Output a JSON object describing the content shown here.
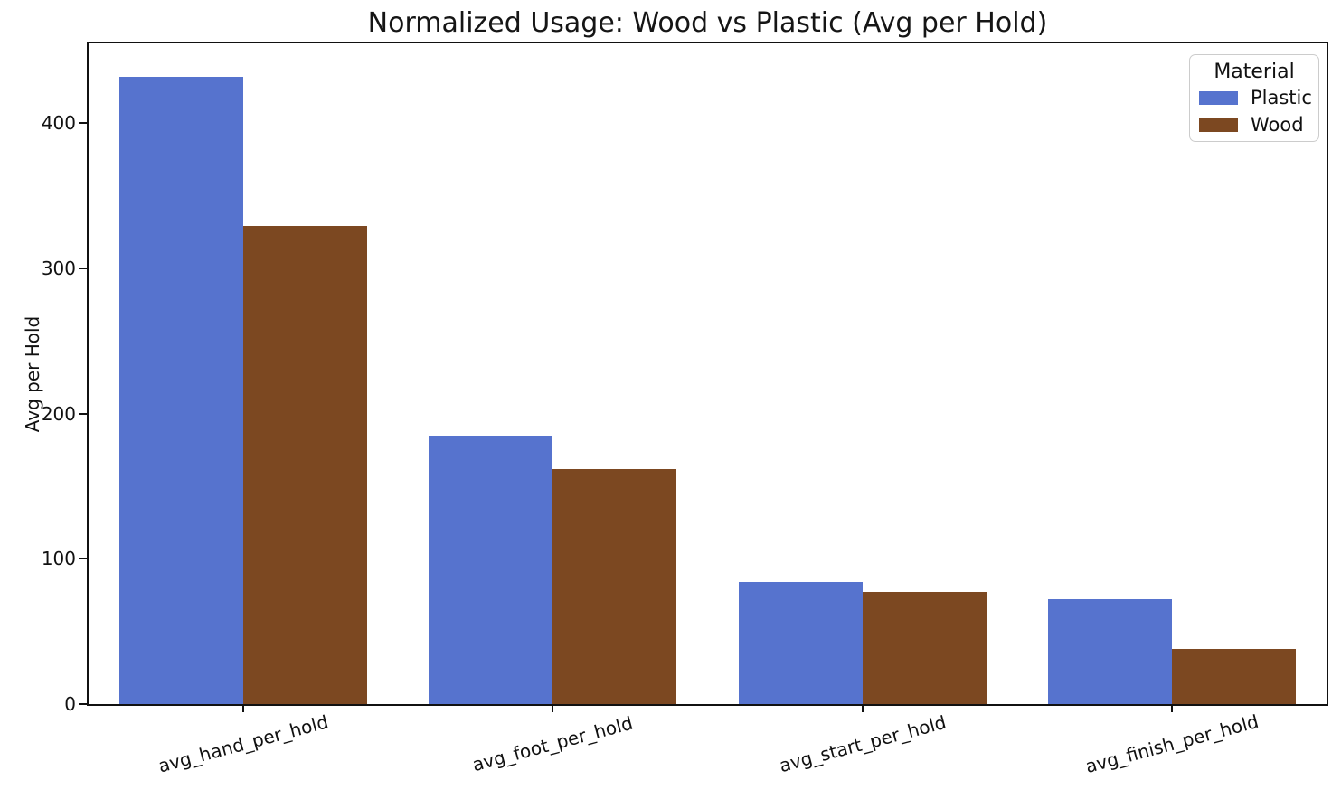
{
  "chart_data": {
    "type": "bar",
    "title": "Normalized Usage: Wood vs Plastic (Avg per Hold)",
    "xlabel": "",
    "ylabel": "Avg per Hold",
    "categories": [
      "avg_hand_per_hold",
      "avg_foot_per_hold",
      "avg_start_per_hold",
      "avg_finish_per_hold"
    ],
    "series": [
      {
        "name": "Plastic",
        "color": "#5673CE",
        "values": [
          432,
          185,
          84,
          72
        ]
      },
      {
        "name": "Wood",
        "color": "#7C4821",
        "values": [
          329,
          162,
          77,
          38
        ]
      }
    ],
    "legend": {
      "title": "Material",
      "position": "upper-right"
    },
    "ylim": [
      0,
      455
    ],
    "yticks": [
      0,
      100,
      200,
      300,
      400
    ],
    "xtick_rotation_deg": 15,
    "grid": false,
    "group_width_fraction": 0.8
  },
  "colors": {
    "axis": "#111111",
    "background": "#ffffff",
    "legend_border": "#cccccc"
  }
}
